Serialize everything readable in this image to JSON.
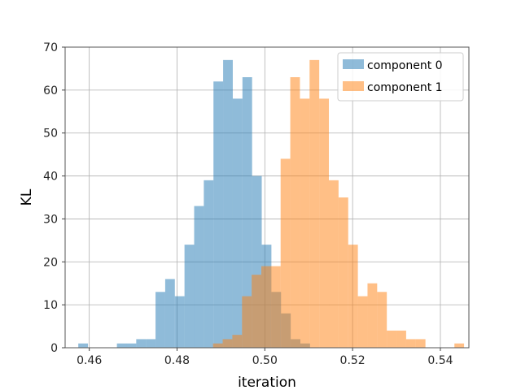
{
  "chart_data": {
    "type": "histogram",
    "title": "",
    "xlabel": "iteration",
    "ylabel": "KL",
    "xlim": [
      0.4545,
      0.5465
    ],
    "ylim": [
      0,
      70
    ],
    "xticks": [
      0.46,
      0.48,
      0.5,
      0.52,
      0.54
    ],
    "xtick_labels": [
      "0.46",
      "0.48",
      "0.50",
      "0.52",
      "0.54"
    ],
    "yticks": [
      0,
      10,
      20,
      30,
      40,
      50,
      60,
      70
    ],
    "ytick_labels": [
      "0",
      "10",
      "20",
      "30",
      "40",
      "50",
      "60",
      "70"
    ],
    "grid": true,
    "legend_position": "top-right",
    "bin_width": 0.0022,
    "bins_start": 0.4575,
    "series": [
      {
        "name": "component 0",
        "color": "#1f77b4",
        "alpha": 0.5,
        "counts": [
          1,
          0,
          0,
          0,
          1,
          1,
          2,
          2,
          13,
          16,
          12,
          24,
          33,
          39,
          62,
          67,
          58,
          63,
          40,
          24,
          13,
          8,
          2,
          1,
          0,
          0
        ]
      },
      {
        "name": "component 1",
        "color": "#ff7f0e",
        "alpha": 0.5,
        "bins_start": 0.4882,
        "counts": [
          1,
          2,
          3,
          12,
          17,
          19,
          19,
          44,
          63,
          58,
          67,
          58,
          39,
          35,
          24,
          12,
          15,
          13,
          4,
          4,
          2,
          2,
          0,
          0,
          0,
          1
        ]
      }
    ]
  }
}
